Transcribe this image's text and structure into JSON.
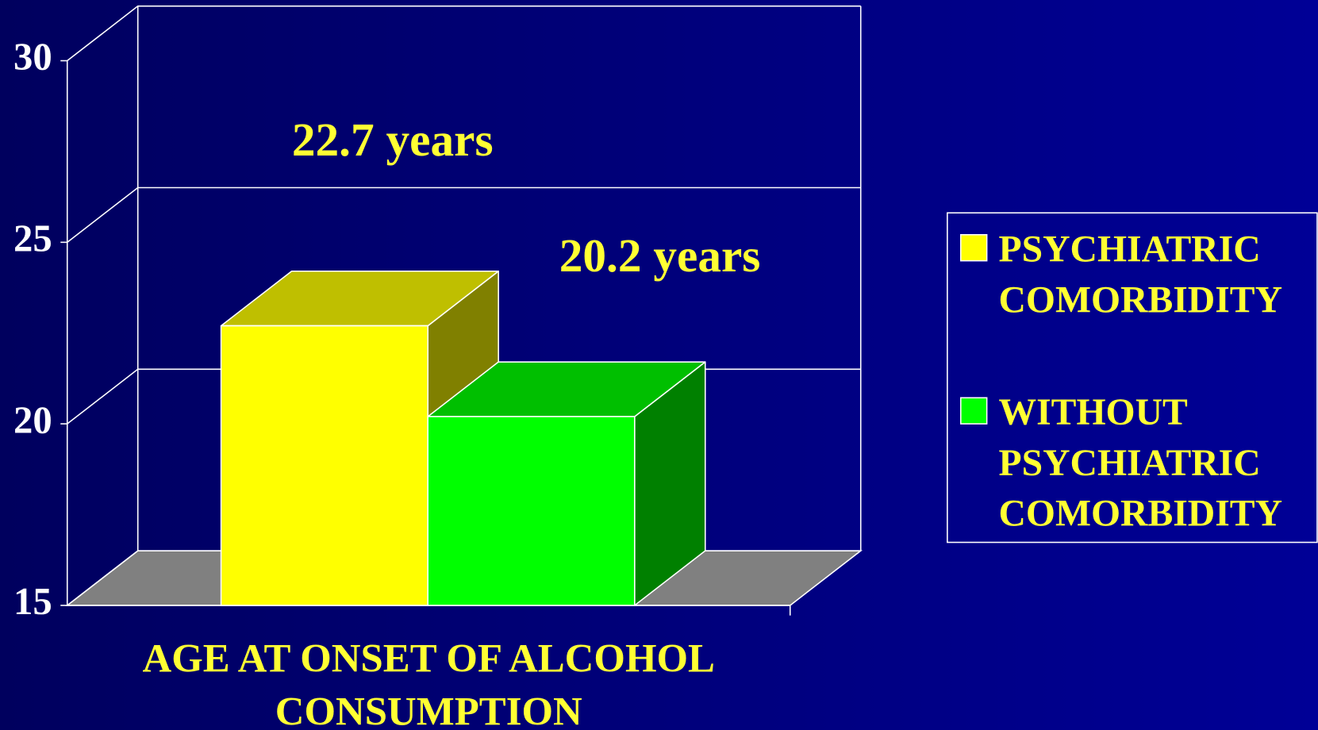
{
  "chart_data": {
    "type": "bar3d",
    "categories": [
      "AGE AT ONSET OF ALCOHOL CONSUMPTION"
    ],
    "series": [
      {
        "name": "PSYCHIATRIC COMORBIDITY",
        "color": "#ffff00",
        "values": [
          22.7
        ],
        "value_labels": [
          "22.7 years"
        ]
      },
      {
        "name": "WITHOUT PSYCHIATRIC COMORBIDITY",
        "color": "#00ff00",
        "values": [
          20.2
        ],
        "value_labels": [
          "20.2 years"
        ]
      }
    ],
    "ylim": [
      15,
      30
    ],
    "yticks": [
      15,
      20,
      25,
      30
    ],
    "grid": true,
    "legend": "right"
  }
}
